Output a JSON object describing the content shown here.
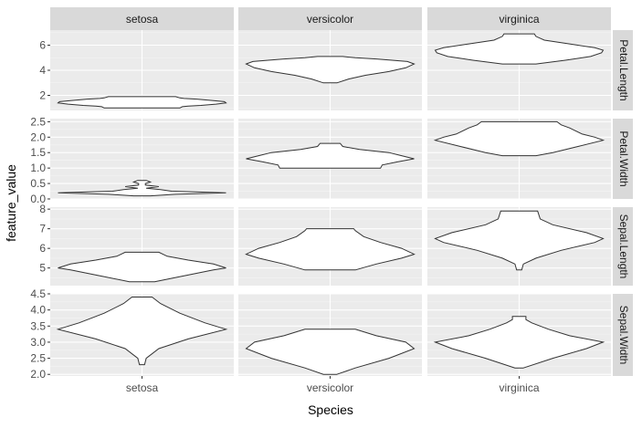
{
  "chart_data": {
    "type": "violin",
    "xlabel": "Species",
    "ylabel": "feature_value",
    "categories": [
      "setosa",
      "versicolor",
      "virginica"
    ],
    "facet_rows": [
      "Petal.Length",
      "Petal.Width",
      "Sepal.Length",
      "Sepal.Width"
    ],
    "facet_cols": [
      "setosa",
      "versicolor",
      "virginica"
    ],
    "grid": true,
    "panel_background": "#EBEBEB",
    "strip_background": "#D9D9D9",
    "violin_fill": "#FFFFFF",
    "rows": [
      {
        "name": "Petal.Length",
        "ylim": [
          0.8,
          7.2
        ],
        "ticks": [
          2,
          4,
          6
        ],
        "tick_labels": [
          "2",
          "4",
          "6"
        ],
        "violins": [
          {
            "category": "setosa",
            "min": 1.0,
            "max": 1.9,
            "profile": [
              [
                1.0,
                0.45
              ],
              [
                1.1,
                0.48
              ],
              [
                1.15,
                0.55
              ],
              [
                1.2,
                0.7
              ],
              [
                1.3,
                0.88
              ],
              [
                1.4,
                1.0
              ],
              [
                1.5,
                0.98
              ],
              [
                1.6,
                0.82
              ],
              [
                1.7,
                0.65
              ],
              [
                1.75,
                0.5
              ],
              [
                1.8,
                0.45
              ],
              [
                1.9,
                0.4
              ]
            ]
          },
          {
            "category": "versicolor",
            "min": 3.0,
            "max": 5.1,
            "profile": [
              [
                3.0,
                0.08
              ],
              [
                3.3,
                0.22
              ],
              [
                3.6,
                0.42
              ],
              [
                3.9,
                0.7
              ],
              [
                4.2,
                0.9
              ],
              [
                4.5,
                1.0
              ],
              [
                4.7,
                0.92
              ],
              [
                4.9,
                0.55
              ],
              [
                5.0,
                0.3
              ],
              [
                5.1,
                0.15
              ]
            ]
          },
          {
            "category": "virginica",
            "min": 4.5,
            "max": 6.9,
            "profile": [
              [
                4.5,
                0.2
              ],
              [
                4.8,
                0.55
              ],
              [
                5.1,
                0.85
              ],
              [
                5.4,
                0.98
              ],
              [
                5.6,
                1.0
              ],
              [
                5.8,
                0.9
              ],
              [
                6.1,
                0.6
              ],
              [
                6.4,
                0.3
              ],
              [
                6.7,
                0.2
              ],
              [
                6.9,
                0.18
              ]
            ]
          }
        ]
      },
      {
        "name": "Petal.Width",
        "ylim": [
          0.0,
          2.6
        ],
        "ticks": [
          0.0,
          0.5,
          1.0,
          1.5,
          2.0,
          2.5
        ],
        "tick_labels": [
          "0.0",
          "0.5",
          "1.0",
          "1.5",
          "2.0",
          "2.5"
        ],
        "violins": [
          {
            "category": "setosa",
            "min": 0.1,
            "max": 0.6,
            "profile": [
              [
                0.1,
                0.1
              ],
              [
                0.15,
                0.4
              ],
              [
                0.2,
                1.0
              ],
              [
                0.25,
                0.35
              ],
              [
                0.3,
                0.22
              ],
              [
                0.35,
                0.05
              ],
              [
                0.4,
                0.2
              ],
              [
                0.45,
                0.04
              ],
              [
                0.5,
                0.04
              ],
              [
                0.55,
                0.1
              ],
              [
                0.6,
                0.05
              ]
            ]
          },
          {
            "category": "versicolor",
            "min": 1.0,
            "max": 1.8,
            "profile": [
              [
                1.0,
                0.6
              ],
              [
                1.1,
                0.62
              ],
              [
                1.2,
                0.8
              ],
              [
                1.3,
                1.0
              ],
              [
                1.4,
                0.85
              ],
              [
                1.5,
                0.7
              ],
              [
                1.6,
                0.35
              ],
              [
                1.7,
                0.15
              ],
              [
                1.8,
                0.12
              ]
            ]
          },
          {
            "category": "virginica",
            "min": 1.4,
            "max": 2.5,
            "profile": [
              [
                1.4,
                0.2
              ],
              [
                1.5,
                0.4
              ],
              [
                1.7,
                0.7
              ],
              [
                1.9,
                1.0
              ],
              [
                2.0,
                0.9
              ],
              [
                2.1,
                0.75
              ],
              [
                2.3,
                0.6
              ],
              [
                2.4,
                0.5
              ],
              [
                2.5,
                0.45
              ]
            ]
          }
        ]
      },
      {
        "name": "Sepal.Length",
        "ylim": [
          4.1,
          8.1
        ],
        "ticks": [
          5,
          6,
          7,
          8
        ],
        "tick_labels": [
          "5",
          "6",
          "7",
          "8"
        ],
        "violins": [
          {
            "category": "setosa",
            "min": 4.3,
            "max": 5.8,
            "profile": [
              [
                4.3,
                0.15
              ],
              [
                4.6,
                0.5
              ],
              [
                4.9,
                0.85
              ],
              [
                5.0,
                1.0
              ],
              [
                5.2,
                0.85
              ],
              [
                5.4,
                0.55
              ],
              [
                5.6,
                0.3
              ],
              [
                5.8,
                0.2
              ]
            ]
          },
          {
            "category": "versicolor",
            "min": 4.9,
            "max": 7.0,
            "profile": [
              [
                4.9,
                0.3
              ],
              [
                5.2,
                0.55
              ],
              [
                5.5,
                0.85
              ],
              [
                5.7,
                1.0
              ],
              [
                6.0,
                0.85
              ],
              [
                6.3,
                0.6
              ],
              [
                6.6,
                0.4
              ],
              [
                6.9,
                0.3
              ],
              [
                7.0,
                0.28
              ]
            ]
          },
          {
            "category": "virginica",
            "min": 4.9,
            "max": 7.9,
            "profile": [
              [
                4.9,
                0.03
              ],
              [
                5.2,
                0.05
              ],
              [
                5.5,
                0.2
              ],
              [
                5.9,
                0.5
              ],
              [
                6.3,
                0.9
              ],
              [
                6.5,
                1.0
              ],
              [
                6.8,
                0.8
              ],
              [
                7.2,
                0.4
              ],
              [
                7.5,
                0.25
              ],
              [
                7.9,
                0.22
              ]
            ]
          }
        ]
      },
      {
        "name": "Sepal.Width",
        "ylim": [
          1.95,
          4.5
        ],
        "ticks": [
          2.0,
          2.5,
          3.0,
          3.5,
          4.0,
          4.5
        ],
        "tick_labels": [
          "2.0",
          "2.5",
          "3.0",
          "3.5",
          "4.0",
          "4.5"
        ],
        "violins": [
          {
            "category": "setosa",
            "min": 2.3,
            "max": 4.4,
            "profile": [
              [
                2.3,
                0.03
              ],
              [
                2.5,
                0.05
              ],
              [
                2.8,
                0.2
              ],
              [
                3.1,
                0.55
              ],
              [
                3.4,
                1.0
              ],
              [
                3.6,
                0.75
              ],
              [
                3.9,
                0.45
              ],
              [
                4.2,
                0.22
              ],
              [
                4.4,
                0.12
              ]
            ]
          },
          {
            "category": "versicolor",
            "min": 2.0,
            "max": 3.4,
            "profile": [
              [
                2.0,
                0.08
              ],
              [
                2.2,
                0.3
              ],
              [
                2.5,
                0.7
              ],
              [
                2.8,
                1.0
              ],
              [
                3.0,
                0.9
              ],
              [
                3.2,
                0.55
              ],
              [
                3.4,
                0.3
              ]
            ]
          },
          {
            "category": "virginica",
            "min": 2.2,
            "max": 3.8,
            "profile": [
              [
                2.2,
                0.05
              ],
              [
                2.5,
                0.4
              ],
              [
                2.8,
                0.8
              ],
              [
                3.0,
                1.0
              ],
              [
                3.2,
                0.6
              ],
              [
                3.4,
                0.35
              ],
              [
                3.6,
                0.15
              ],
              [
                3.7,
                0.08
              ],
              [
                3.8,
                0.08
              ]
            ]
          }
        ]
      }
    ]
  }
}
